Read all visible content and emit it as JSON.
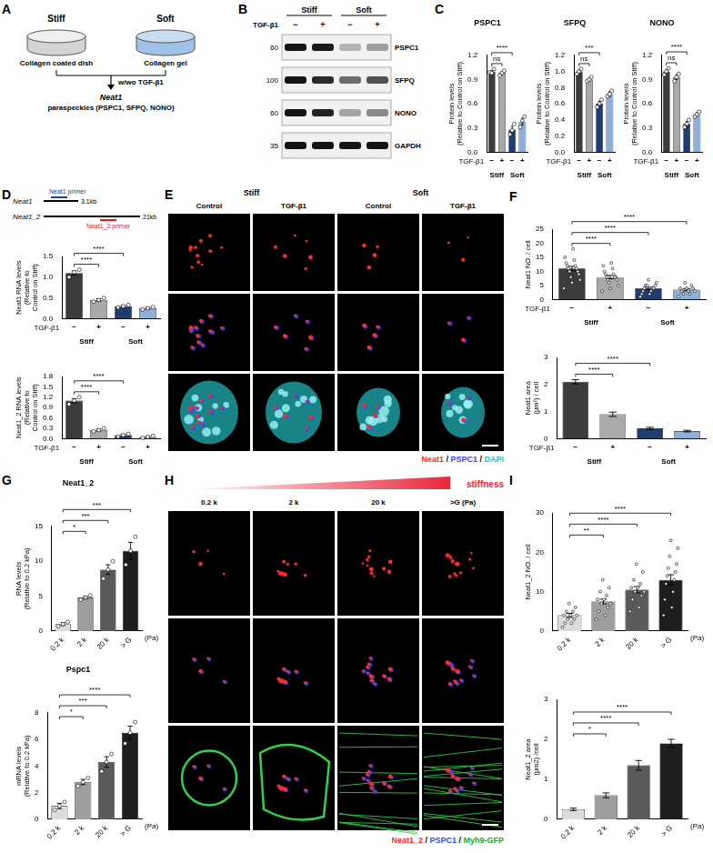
{
  "panel_letters": [
    "A",
    "B",
    "C",
    "D",
    "E",
    "F",
    "G",
    "H",
    "I"
  ],
  "diagram_A": {
    "left": {
      "label": "Stiff",
      "caption": "Collagen coated dish"
    },
    "right": {
      "label": "Soft",
      "caption": "Collagen gel"
    },
    "treatment": "w/wo TGF-β1",
    "result": "Neat1",
    "result_detail": "paraspeckles (PSPC1, SFPQ, NONO)"
  },
  "blot_B": {
    "groups": [
      "Stiff",
      "Soft"
    ],
    "treatment_label": "TGF-β1",
    "treatment": [
      "−",
      "+",
      "−",
      "+"
    ],
    "rows": [
      {
        "protein": "PSPC1",
        "marker": 60
      },
      {
        "protein": "SFPQ",
        "marker": 100
      },
      {
        "protein": "NONO",
        "marker": 60
      },
      {
        "protein": "GAPDH",
        "marker": 35
      }
    ]
  },
  "diagram_D": {
    "transcripts": [
      {
        "name": "Neat1",
        "length": "3.1kb",
        "primer": "Neat1 primer",
        "primer_color": "#1f3f9a"
      },
      {
        "name": "Neat1_2",
        "length": "21kb",
        "primer": "Neat1_2 primer",
        "primer_color": "#e02020"
      }
    ]
  },
  "images_E": {
    "groups": [
      "Stiff",
      "Soft"
    ],
    "columns": [
      "Control",
      "TGF-β1",
      "Control",
      "TGF-β1"
    ],
    "caption": [
      {
        "text": "Neat1",
        "color": "#ff2a2a"
      },
      {
        "text": " / ",
        "color": "#000000"
      },
      {
        "text": "PSPC1",
        "color": "#3a46ff"
      },
      {
        "text": " / ",
        "color": "#000000"
      },
      {
        "text": "DAPI",
        "color": "#22c4c8"
      }
    ]
  },
  "images_H": {
    "gradient_label": "stiffness",
    "columns": [
      "0.2 k",
      "2 k",
      "20 k",
      ">G (Pa)"
    ],
    "caption": [
      {
        "text": "Neat1_2",
        "color": "#ff2a2a"
      },
      {
        "text": " / ",
        "color": "#000000"
      },
      {
        "text": "PSPC1",
        "color": "#3a46ff"
      },
      {
        "text": " / ",
        "color": "#000000"
      },
      {
        "text": "Myh9-GFP",
        "color": "#22a83a"
      }
    ]
  },
  "chart_data": [
    {
      "type": "bar",
      "title": "PSPC1",
      "ylabel": "Protein levels (Relative to Control on Stiff)",
      "categories": [
        "−",
        "+",
        "−",
        "+"
      ],
      "category_label": "TGF-β1",
      "groups": [
        {
          "label": "Stiff",
          "from": 0,
          "to": 1
        },
        {
          "label": "Soft",
          "from": 2,
          "to": 3
        }
      ],
      "values": [
        1.0,
        0.98,
        0.28,
        0.38
      ],
      "errors": [
        0.01,
        0.02,
        0.04,
        0.04
      ],
      "points": [
        [
          0.99,
          0.98,
          1.03
        ],
        [
          0.95,
          0.98,
          1.01
        ],
        [
          0.22,
          0.27,
          0.35
        ],
        [
          0.31,
          0.39,
          0.44
        ]
      ],
      "colors": [
        "#3c3c3c",
        "#a9a9a9",
        "#1e3d73",
        "#8eaedb"
      ],
      "ylim": [
        0,
        1.2
      ],
      "yticks": [
        {
          "value": 0,
          "label": "0.0"
        },
        0.3,
        0.6,
        0.9,
        1.2
      ],
      "significance": [
        {
          "from": 0,
          "to": 1,
          "label": "ns"
        },
        {
          "from": 0,
          "to": 2,
          "label": "****"
        }
      ]
    },
    {
      "type": "bar",
      "title": "SFPQ",
      "ylabel": "Protein levels (Relative to Control on Stiff)",
      "categories": [
        "−",
        "+",
        "−",
        "+"
      ],
      "category_label": "TGF-β1",
      "groups": [
        {
          "label": "Stiff",
          "from": 0,
          "to": 1
        },
        {
          "label": "Soft",
          "from": 2,
          "to": 3
        }
      ],
      "values": [
        1.0,
        0.9,
        0.6,
        0.72
      ],
      "errors": [
        0.02,
        0.02,
        0.03,
        0.03
      ],
      "points": [
        [
          0.97,
          1.0,
          1.03
        ],
        [
          0.88,
          0.9,
          0.93
        ],
        [
          0.56,
          0.6,
          0.65
        ],
        [
          0.69,
          0.72,
          0.76
        ]
      ],
      "colors": [
        "#3c3c3c",
        "#a9a9a9",
        "#1e3d73",
        "#8eaedb"
      ],
      "ylim": [
        0,
        1.2
      ],
      "yticks": [
        {
          "value": 0,
          "label": "0.0"
        },
        0.2,
        0.4,
        0.6,
        0.8,
        {
          "value": 1,
          "label": "1.0"
        },
        1.2
      ],
      "significance": [
        {
          "from": 0,
          "to": 1,
          "label": "ns"
        },
        {
          "from": 0,
          "to": 2,
          "label": "***"
        }
      ]
    },
    {
      "type": "bar",
      "title": "NONO",
      "ylabel": "Protein levels (Relative to Control on Stiff)",
      "categories": [
        "−",
        "+",
        "−",
        "+"
      ],
      "category_label": "TGF-β1",
      "groups": [
        {
          "label": "Stiff",
          "from": 0,
          "to": 1
        },
        {
          "label": "Soft",
          "from": 2,
          "to": 3
        }
      ],
      "values": [
        1.0,
        0.93,
        0.35,
        0.47
      ],
      "errors": [
        0.02,
        0.03,
        0.03,
        0.02
      ],
      "points": [
        [
          0.96,
          1.0,
          1.04
        ],
        [
          0.88,
          0.93,
          0.97
        ],
        [
          0.31,
          0.35,
          0.4
        ],
        [
          0.44,
          0.47,
          0.5
        ]
      ],
      "colors": [
        "#3c3c3c",
        "#a9a9a9",
        "#1e3d73",
        "#8eaedb"
      ],
      "ylim": [
        0,
        1.2
      ],
      "yticks": [
        {
          "value": 0,
          "label": "0.0"
        },
        0.3,
        0.6,
        0.9,
        1.2
      ],
      "significance": [
        {
          "from": 0,
          "to": 1,
          "label": "ns"
        },
        {
          "from": 0,
          "to": 2,
          "label": "****"
        }
      ]
    },
    {
      "type": "bar",
      "ylabel": "Neat1 RNA levels (Relative to Control on Stiff)",
      "categories": [
        "−",
        "+",
        "−",
        "+"
      ],
      "category_label": "TGF-β1",
      "groups": [
        {
          "label": "Stiff",
          "from": 0,
          "to": 1
        },
        {
          "label": "Soft",
          "from": 2,
          "to": 3
        }
      ],
      "values": [
        1.1,
        0.45,
        0.3,
        0.25
      ],
      "errors": [
        0.05,
        0.03,
        0.02,
        0.02
      ],
      "points": [
        [
          1.0,
          1.12,
          1.18
        ],
        [
          0.41,
          0.45,
          0.5
        ],
        [
          0.27,
          0.3,
          0.33
        ],
        [
          0.22,
          0.25,
          0.28
        ]
      ],
      "colors": [
        "#3c3c3c",
        "#a9a9a9",
        "#1e3d73",
        "#8eaedb"
      ],
      "ylim": [
        0,
        1.5
      ],
      "yticks": [
        {
          "value": 0,
          "label": "0.0"
        },
        0.5,
        {
          "value": 1,
          "label": "1.0"
        },
        1.5
      ],
      "significance": [
        {
          "from": 0,
          "to": 1,
          "label": "****"
        },
        {
          "from": 0,
          "to": 2,
          "label": "****"
        }
      ]
    },
    {
      "type": "bar",
      "ylabel": "Neat1_2 RNA levels (Relative to Control on Stiff)",
      "categories": [
        "−",
        "+",
        "−",
        "+"
      ],
      "category_label": "TGF-β1",
      "groups": [
        {
          "label": "Stiff",
          "from": 0,
          "to": 1
        },
        {
          "label": "Soft",
          "from": 2,
          "to": 3
        }
      ],
      "values": [
        1.1,
        0.25,
        0.1,
        0.05
      ],
      "errors": [
        0.06,
        0.03,
        0.03,
        0.02
      ],
      "points": [
        [
          1.0,
          1.1,
          1.2
        ],
        [
          0.21,
          0.25,
          0.3
        ],
        [
          0.06,
          0.1,
          0.14
        ],
        [
          0.02,
          0.05,
          0.08
        ]
      ],
      "colors": [
        "#3c3c3c",
        "#a9a9a9",
        "#1e3d73",
        "#8eaedb"
      ],
      "ylim": [
        0,
        1.8
      ],
      "yticks": [
        {
          "value": 0,
          "label": "0.0"
        },
        0.3,
        0.6,
        0.9,
        1.2,
        1.5,
        1.8
      ],
      "significance": [
        {
          "from": 0,
          "to": 1,
          "label": "****"
        },
        {
          "from": 0,
          "to": 2,
          "label": "****"
        }
      ]
    },
    {
      "type": "bar",
      "ylabel": "Neat1 NO. / cell",
      "categories": [
        "−",
        "+",
        "−",
        "+"
      ],
      "category_label": "TGF-β1",
      "groups": [
        {
          "label": "Stiff",
          "from": 0,
          "to": 1
        },
        {
          "label": "Soft",
          "from": 2,
          "to": 3
        }
      ],
      "values": [
        11,
        8,
        4,
        3.5
      ],
      "errors": [
        0.8,
        0.6,
        0.4,
        0.4
      ],
      "points": [
        [
          4,
          6,
          7,
          8,
          9,
          10,
          10,
          11,
          11,
          12,
          12,
          13,
          14,
          15,
          18
        ],
        [
          3,
          4,
          5,
          6,
          7,
          7,
          8,
          8,
          8,
          9,
          9,
          10,
          11,
          12,
          13
        ],
        [
          1,
          2,
          2,
          3,
          3,
          4,
          4,
          4,
          5,
          5,
          5,
          6,
          7
        ],
        [
          1,
          2,
          2,
          3,
          3,
          3,
          4,
          4,
          4,
          5,
          6
        ]
      ],
      "colors": [
        "#3c3c3c",
        "#a9a9a9",
        "#1e3d73",
        "#8eaedb"
      ],
      "ylim": [
        0,
        25
      ],
      "yticks": [
        0,
        5,
        10,
        15,
        20,
        25
      ],
      "significance": [
        {
          "from": 0,
          "to": 1,
          "label": "****"
        },
        {
          "from": 0,
          "to": 2,
          "label": "****"
        },
        {
          "from": 0,
          "to": 3,
          "label": "****"
        }
      ]
    },
    {
      "type": "bar",
      "ylabel": "Neat1 area (µm²) / cell",
      "categories": [
        "−",
        "+",
        "−",
        "+"
      ],
      "category_label": "TGF-β1",
      "groups": [
        {
          "label": "Stiff",
          "from": 0,
          "to": 1
        },
        {
          "label": "Soft",
          "from": 2,
          "to": 3
        }
      ],
      "values": [
        2.1,
        0.9,
        0.38,
        0.28
      ],
      "errors": [
        0.08,
        0.08,
        0.04,
        0.03
      ],
      "colors": [
        "#3c3c3c",
        "#a9a9a9",
        "#1e3d73",
        "#8eaedb"
      ],
      "ylim": [
        0,
        3
      ],
      "yticks": [
        0,
        1,
        2,
        3
      ],
      "significance": [
        {
          "from": 0,
          "to": 1,
          "label": "****"
        },
        {
          "from": 0,
          "to": 2,
          "label": "****"
        }
      ]
    },
    {
      "type": "bar",
      "title": "Neat1_2",
      "ylabel": "RNA levels (Relative to 0.2 kPa)",
      "categories": [
        "0.2 k",
        "2 k",
        "20 k",
        "> G"
      ],
      "xlabel": "(Pa)",
      "values": [
        1.0,
        4.8,
        8.8,
        11.5
      ],
      "errors": [
        0.2,
        0.2,
        0.7,
        1.2
      ],
      "points": [
        [
          0.7,
          1.0,
          1.3
        ],
        [
          4.5,
          4.8,
          5.1
        ],
        [
          7.5,
          8.8,
          10.0
        ],
        [
          9.5,
          11.5,
          13.5
        ]
      ],
      "colors": [
        "#dcdcdc",
        "#9e9e9e",
        "#5a5a5a",
        "#1e1e1e"
      ],
      "ylim": [
        0,
        15
      ],
      "yticks": [
        0,
        5,
        10,
        15
      ],
      "significance": [
        {
          "from": 0,
          "to": 1,
          "label": "*"
        },
        {
          "from": 0,
          "to": 2,
          "label": "***"
        },
        {
          "from": 0,
          "to": 3,
          "label": "***"
        }
      ]
    },
    {
      "type": "bar",
      "title": "Pspc1",
      "ylabel": "mRNA levels (Relative to 0.2 kPa)",
      "categories": [
        "0.2 k",
        "2 k",
        "20 k",
        "> G"
      ],
      "xlabel": "(Pa)",
      "values": [
        1.0,
        2.8,
        4.3,
        6.5
      ],
      "errors": [
        0.2,
        0.2,
        0.4,
        0.5
      ],
      "points": [
        [
          0.7,
          1.0,
          1.3
        ],
        [
          2.5,
          2.8,
          3.1
        ],
        [
          3.6,
          4.3,
          4.9
        ],
        [
          5.7,
          6.5,
          7.3
        ]
      ],
      "colors": [
        "#dcdcdc",
        "#9e9e9e",
        "#5a5a5a",
        "#1e1e1e"
      ],
      "ylim": [
        0,
        8
      ],
      "yticks": [
        0,
        2,
        4,
        6,
        8
      ],
      "significance": [
        {
          "from": 0,
          "to": 1,
          "label": "*"
        },
        {
          "from": 0,
          "to": 2,
          "label": "***"
        },
        {
          "from": 0,
          "to": 3,
          "label": "****"
        }
      ]
    },
    {
      "type": "bar",
      "ylabel": "Neat1_2 NO. / cell",
      "categories": [
        "0.2 k",
        "2 k",
        "20 k",
        "> G"
      ],
      "xlabel": "(Pa)",
      "values": [
        4,
        7.5,
        10.5,
        13
      ],
      "errors": [
        0.5,
        0.6,
        0.8,
        1.3
      ],
      "points": [
        [
          1,
          2,
          2,
          3,
          3,
          4,
          4,
          4,
          5,
          5,
          6,
          7
        ],
        [
          3,
          4,
          5,
          6,
          7,
          7,
          8,
          8,
          9,
          10,
          11,
          13
        ],
        [
          5,
          6,
          8,
          9,
          10,
          10,
          11,
          11,
          12,
          13,
          15,
          17
        ],
        [
          4,
          6,
          8,
          10,
          12,
          13,
          14,
          15,
          16,
          17,
          19,
          21,
          23
        ]
      ],
      "colors": [
        "#dcdcdc",
        "#9e9e9e",
        "#5a5a5a",
        "#1e1e1e"
      ],
      "ylim": [
        0,
        30
      ],
      "yticks": [
        0,
        10,
        20,
        30
      ],
      "significance": [
        {
          "from": 0,
          "to": 1,
          "label": "**"
        },
        {
          "from": 0,
          "to": 2,
          "label": "****"
        },
        {
          "from": 0,
          "to": 3,
          "label": "****"
        }
      ]
    },
    {
      "type": "bar",
      "ylabel": "Neat1_2 area (µm2) /cell",
      "categories": [
        "0.2 k",
        "2 k",
        "20 k",
        "> G"
      ],
      "xlabel": "(Pa)",
      "values": [
        0.25,
        0.6,
        1.35,
        1.9
      ],
      "errors": [
        0.03,
        0.06,
        0.12,
        0.1
      ],
      "colors": [
        "#dcdcdc",
        "#9e9e9e",
        "#5a5a5a",
        "#1e1e1e"
      ],
      "ylim": [
        0,
        3
      ],
      "yticks": [
        0,
        1,
        2,
        3
      ],
      "significance": [
        {
          "from": 0,
          "to": 1,
          "label": "*"
        },
        {
          "from": 0,
          "to": 2,
          "label": "****"
        },
        {
          "from": 0,
          "to": 3,
          "label": "****"
        }
      ]
    }
  ]
}
